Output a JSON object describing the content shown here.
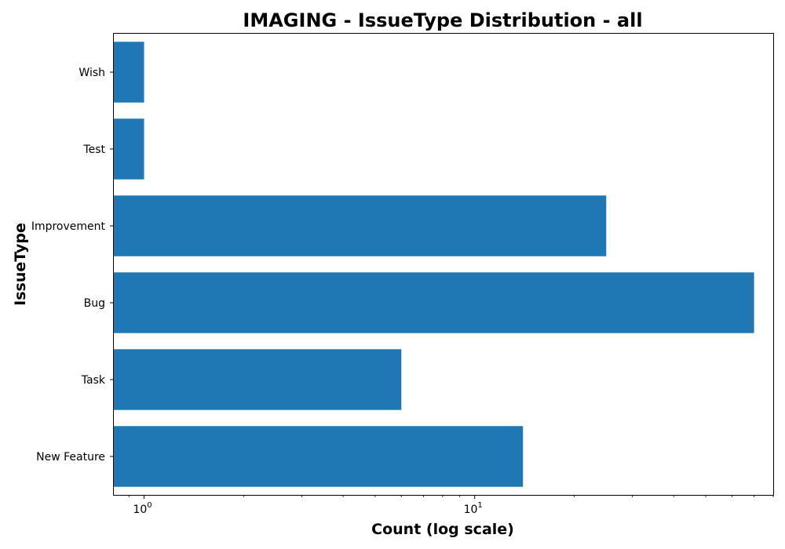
{
  "chart_data": {
    "type": "bar",
    "orientation": "horizontal",
    "title": "IMAGING - IssueType Distribution - all",
    "xlabel": "Count (log scale)",
    "ylabel": "IssueType",
    "x_scale": "log",
    "xlim": [
      0.81,
      80
    ],
    "x_major_ticks": [
      {
        "value": 1,
        "base": "10",
        "exponent": "0"
      },
      {
        "value": 10,
        "base": "10",
        "exponent": "1"
      }
    ],
    "categories": [
      "New Feature",
      "Task",
      "Bug",
      "Improvement",
      "Test",
      "Wish"
    ],
    "values": [
      14,
      6,
      70,
      25,
      1,
      1
    ],
    "bar_color": "#1f77b4",
    "grid": false,
    "legend": "none"
  }
}
